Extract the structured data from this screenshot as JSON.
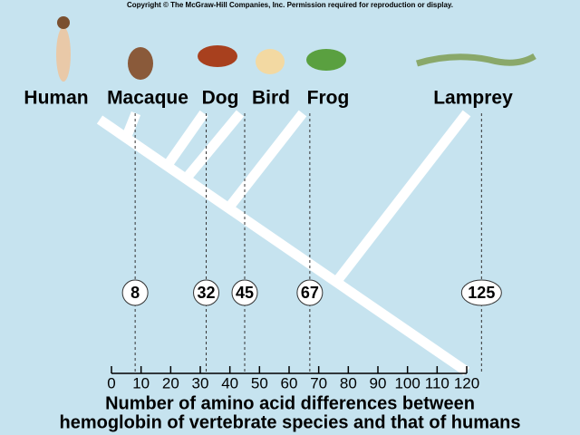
{
  "copyright": "Copyright © The McGraw-Hill Companies, Inc. Permission required for reproduction or display.",
  "species": [
    "Human",
    "Macaque",
    "Dog",
    "Bird",
    "Frog",
    "Lamprey"
  ],
  "differences": [
    8,
    32,
    45,
    67,
    125
  ],
  "axis": {
    "range": [
      0,
      120
    ],
    "ticks": [
      0,
      10,
      20,
      30,
      40,
      50,
      60,
      70,
      80,
      90,
      100,
      110,
      120
    ]
  },
  "axis_label": [
    "Number of amino acid differences between",
    "hemoglobin of vertebrate species and that of humans"
  ]
}
